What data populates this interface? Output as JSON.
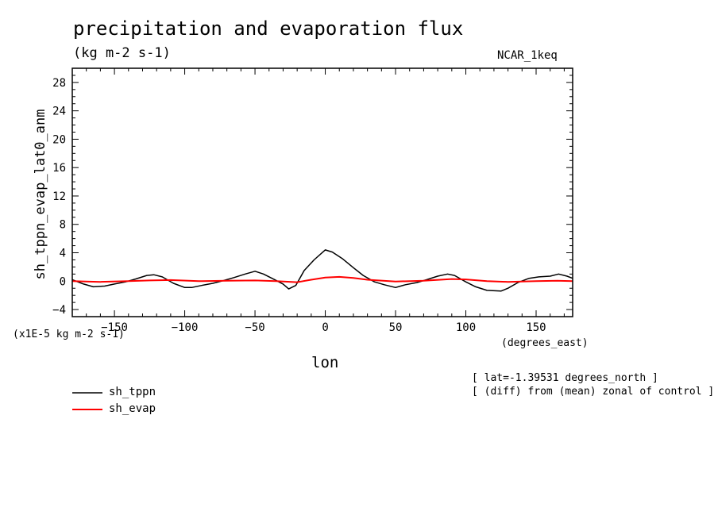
{
  "chart_data": {
    "type": "line",
    "title": "precipitation and evaporation flux",
    "subtitle": "(kg m-2 s-1)",
    "model_label": "NCAR_1keq",
    "xlabel": "lon",
    "x_unit_label": "(degrees_east)",
    "ylabel": "sh_tppn_evap_lat0_anm",
    "y_scale_note": "(x1E-5 kg m-2 s-1)",
    "xlim": [
      -180,
      176
    ],
    "ylim": [
      -5,
      30
    ],
    "x_ticks": [
      -150,
      -100,
      -50,
      0,
      50,
      100,
      150
    ],
    "y_ticks": [
      -4,
      0,
      4,
      8,
      12,
      16,
      20,
      24,
      28
    ],
    "annotations": [
      "[ lat=-1.39531 degrees_north ]",
      "[ (diff) from (mean) zonal of control ]"
    ],
    "legend_position": "bottom-left",
    "series": [
      {
        "name": "sh_tppn",
        "color": "#000000",
        "x": [
          -180,
          -172,
          -165,
          -157,
          -150,
          -142,
          -135,
          -127,
          -122,
          -116,
          -108,
          -100,
          -95,
          -88,
          -80,
          -72,
          -65,
          -57,
          -50,
          -44,
          -37,
          -30,
          -26,
          -21,
          -15,
          -8,
          0,
          5,
          12,
          20,
          27,
          35,
          42,
          50,
          57,
          65,
          72,
          80,
          87,
          92,
          100,
          107,
          115,
          125,
          130,
          137,
          145,
          152,
          160,
          166,
          172,
          176
        ],
        "y": [
          0.2,
          -0.4,
          -0.8,
          -0.7,
          -0.4,
          -0.1,
          0.3,
          0.8,
          0.9,
          0.6,
          -0.3,
          -0.9,
          -0.9,
          -0.6,
          -0.3,
          0.1,
          0.5,
          1.0,
          1.4,
          1.0,
          0.3,
          -0.4,
          -1.1,
          -0.6,
          1.5,
          3.0,
          4.4,
          4.1,
          3.2,
          1.9,
          0.8,
          -0.1,
          -0.5,
          -0.9,
          -0.5,
          -0.2,
          0.2,
          0.7,
          1.0,
          0.8,
          -0.1,
          -0.8,
          -1.3,
          -1.4,
          -1.0,
          -0.2,
          0.4,
          0.6,
          0.7,
          1.0,
          0.7,
          0.4
        ]
      },
      {
        "name": "sh_evap",
        "color": "#ff0000",
        "x": [
          -180,
          -160,
          -140,
          -125,
          -110,
          -90,
          -70,
          -50,
          -35,
          -20,
          -10,
          0,
          10,
          20,
          30,
          50,
          70,
          90,
          100,
          115,
          130,
          150,
          165,
          176
        ],
        "y": [
          0.0,
          -0.1,
          0.0,
          0.1,
          0.15,
          0.0,
          0.05,
          0.1,
          0.0,
          -0.15,
          0.2,
          0.5,
          0.6,
          0.45,
          0.2,
          -0.05,
          0.05,
          0.3,
          0.25,
          0.0,
          -0.1,
          0.0,
          0.05,
          0.0
        ]
      }
    ]
  }
}
